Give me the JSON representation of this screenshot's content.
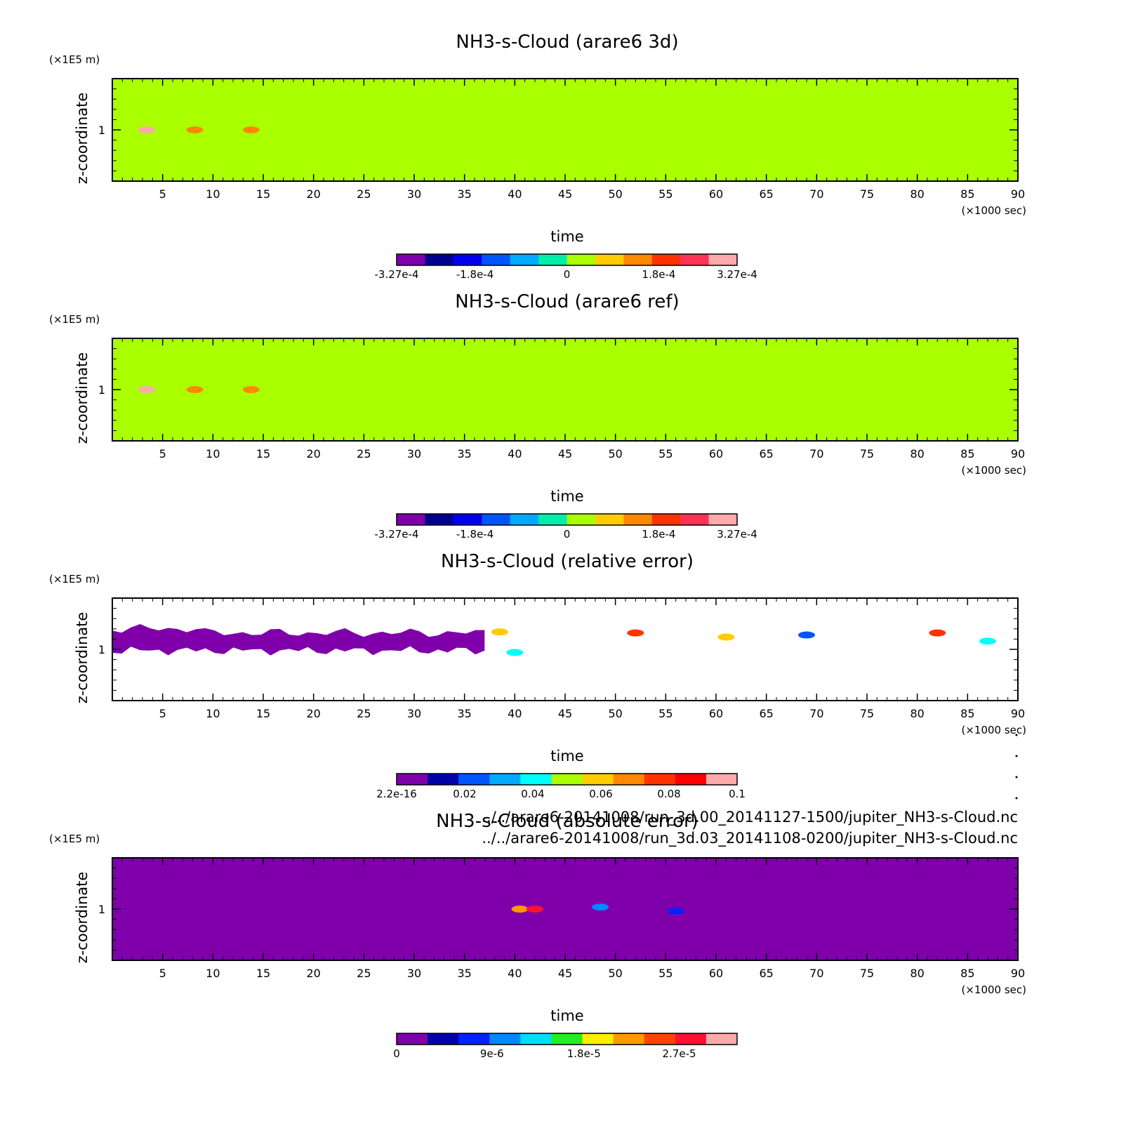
{
  "colors": {
    "green": "#aaff00",
    "purple": "#7f00aa",
    "white": "#ffffff",
    "diverging_scale": [
      "#7f00aa",
      "#00008f",
      "#0000ee",
      "#0055ff",
      "#00aaff",
      "#00eeaa",
      "#aaff00",
      "#ffcc00",
      "#ff8800",
      "#ff3300",
      "#ff3355",
      "#ffaaaa"
    ],
    "relerr_scale": [
      "#7f00aa",
      "#0000aa",
      "#0055ff",
      "#00aaff",
      "#00ffff",
      "#aaff00",
      "#ffcc00",
      "#ff8800",
      "#ff3300",
      "#ff0000",
      "#ffaaaa"
    ],
    "abserr_scale": [
      "#7f00aa",
      "#0000aa",
      "#0022ff",
      "#0088ff",
      "#00ddff",
      "#22ee22",
      "#ffee00",
      "#ff9900",
      "#ff4400",
      "#ff1133",
      "#ffaaaa"
    ]
  },
  "chart_data": [
    {
      "type": "heatmap",
      "title": "NH3-s-Cloud (arare6 3d)",
      "xlabel": "time",
      "x_unit": "(×1000 sec)",
      "ylabel": "z-coordinate",
      "y_unit": "(×1E5 m)",
      "xlim": [
        0,
        90
      ],
      "ylim": [
        0.5,
        1.5
      ],
      "x_ticks": [
        "5",
        "10",
        "15",
        "20",
        "25",
        "30",
        "35",
        "40",
        "45",
        "50",
        "55",
        "60",
        "65",
        "70",
        "75",
        "80",
        "85",
        "90"
      ],
      "y_ticks": [
        "1"
      ],
      "background_level": 0,
      "features": [
        {
          "x": 3.4,
          "y": 1.0,
          "level": 0.0003
        },
        {
          "x": 8.2,
          "y": 1.0,
          "level": 0.00012
        },
        {
          "x": 13.8,
          "y": 1.0,
          "level": 0.00015
        }
      ],
      "colorbar": {
        "labels": [
          "-3.27e-4",
          "-1.8e-4",
          "0",
          "1.8e-4",
          "3.27e-4"
        ]
      }
    },
    {
      "type": "heatmap",
      "title": "NH3-s-Cloud (arare6 ref)",
      "xlabel": "time",
      "x_unit": "(×1000 sec)",
      "ylabel": "z-coordinate",
      "y_unit": "(×1E5 m)",
      "xlim": [
        0,
        90
      ],
      "ylim": [
        0.5,
        1.5
      ],
      "x_ticks": [
        "5",
        "10",
        "15",
        "20",
        "25",
        "30",
        "35",
        "40",
        "45",
        "50",
        "55",
        "60",
        "65",
        "70",
        "75",
        "80",
        "85",
        "90"
      ],
      "y_ticks": [
        "1"
      ],
      "background_level": 0,
      "features": [
        {
          "x": 3.4,
          "y": 1.0,
          "level": 0.0003
        },
        {
          "x": 8.2,
          "y": 1.0,
          "level": 0.00012
        },
        {
          "x": 13.8,
          "y": 1.0,
          "level": 0.00015
        }
      ],
      "colorbar": {
        "labels": [
          "-3.27e-4",
          "-1.8e-4",
          "0",
          "1.8e-4",
          "3.27e-4"
        ]
      }
    },
    {
      "type": "heatmap",
      "title": "NH3-s-Cloud (relative error)",
      "xlabel": "time",
      "x_unit": "(×1000 sec)",
      "ylabel": "z-coordinate",
      "y_unit": "(×1E5 m)",
      "xlim": [
        0,
        90
      ],
      "ylim": [
        0.5,
        1.5
      ],
      "x_ticks": [
        "5",
        "10",
        "15",
        "20",
        "25",
        "30",
        "35",
        "40",
        "45",
        "50",
        "55",
        "60",
        "65",
        "70",
        "75",
        "80",
        "85",
        "90"
      ],
      "y_ticks": [
        "1"
      ],
      "background_level": null,
      "features": [
        {
          "x_range": [
            0,
            37
          ],
          "y_range": [
            0.96,
            1.23
          ],
          "level": 2.2e-16
        },
        {
          "x": 38.5,
          "y": 1.17,
          "level": 0.06
        },
        {
          "x": 40.0,
          "y": 0.97,
          "level": 0.04
        },
        {
          "x": 52.0,
          "y": 1.16,
          "level": 0.08
        },
        {
          "x": 61.0,
          "y": 1.12,
          "level": 0.06
        },
        {
          "x": 69.0,
          "y": 1.14,
          "level": 0.02
        },
        {
          "x": 82.0,
          "y": 1.16,
          "level": 0.08
        },
        {
          "x": 87.0,
          "y": 1.08,
          "level": 0.04
        }
      ],
      "colorbar": {
        "labels": [
          "2.2e-16",
          "0.02",
          "0.04",
          "0.06",
          "0.08",
          "0.1"
        ]
      }
    },
    {
      "type": "heatmap",
      "title": "NH3-s-Cloud (absolute error)",
      "xlabel": "time",
      "x_unit": "(×1000 sec)",
      "ylabel": "z-coordinate",
      "y_unit": "(×1E5 m)",
      "xlim": [
        0,
        90
      ],
      "ylim": [
        0.5,
        1.5
      ],
      "x_ticks": [
        "5",
        "10",
        "15",
        "20",
        "25",
        "30",
        "35",
        "40",
        "45",
        "50",
        "55",
        "60",
        "65",
        "70",
        "75",
        "80",
        "85",
        "90"
      ],
      "y_ticks": [
        "1"
      ],
      "background_level": 0,
      "features": [
        {
          "x": 40.5,
          "y": 1.0,
          "level": 1.8e-05
        },
        {
          "x": 42.0,
          "y": 1.0,
          "level": 2.4e-05
        },
        {
          "x": 48.5,
          "y": 1.02,
          "level": 9e-06
        },
        {
          "x": 56.0,
          "y": 0.98,
          "level": 5e-06
        }
      ],
      "colorbar": {
        "labels": [
          "0",
          "9e-6",
          "1.8e-5",
          "2.7e-5"
        ]
      }
    }
  ],
  "file_paths": [
    "../../arare6-20141008/run_3d.00_20141127-1500/jupiter_NH3-s-Cloud.nc",
    "../../arare6-20141008/run_3d.03_20141108-0200/jupiter_NH3-s-Cloud.nc"
  ]
}
